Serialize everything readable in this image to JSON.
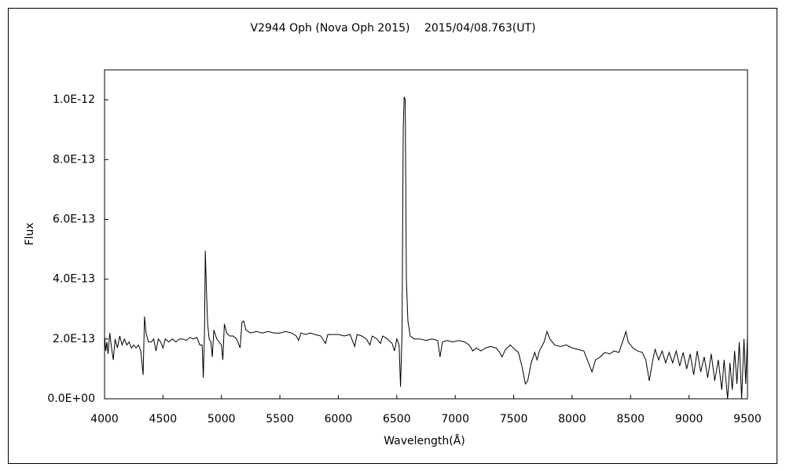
{
  "chart_data": {
    "type": "line",
    "title": "V2944 Oph (Nova Oph 2015)　 2015/04/08.763(UT)",
    "x_label": "Wavelength(Å)",
    "y_label": "Flux",
    "color": "#000000",
    "xlim": [
      4000,
      9500
    ],
    "xticks": [
      4000,
      4500,
      5000,
      5500,
      6000,
      6500,
      7000,
      7500,
      8000,
      8500,
      9000,
      9500
    ],
    "ylim": [
      0,
      1.1e-12
    ],
    "yticks": [
      {
        "value": 0,
        "label": "0.0E+00"
      },
      {
        "value": 2e-13,
        "label": "2.0E-13"
      },
      {
        "value": 4e-13,
        "label": "4.0E-13"
      },
      {
        "value": 6e-13,
        "label": "6.0E-13"
      },
      {
        "value": 8e-13,
        "label": "8.0E-13"
      },
      {
        "value": 1e-12,
        "label": "1.0E-12"
      }
    ],
    "x": [
      4000,
      4010,
      4020,
      4030,
      4045,
      4060,
      4075,
      4090,
      4110,
      4130,
      4150,
      4170,
      4190,
      4210,
      4230,
      4250,
      4270,
      4290,
      4310,
      4330,
      4342,
      4355,
      4375,
      4400,
      4420,
      4440,
      4460,
      4480,
      4500,
      4520,
      4550,
      4580,
      4610,
      4640,
      4670,
      4700,
      4730,
      4760,
      4790,
      4815,
      4835,
      4845,
      4855,
      4862,
      4872,
      4882,
      4895,
      4910,
      4922,
      4935,
      4960,
      5000,
      5012,
      5025,
      5045,
      5070,
      5100,
      5130,
      5160,
      5175,
      5190,
      5210,
      5250,
      5300,
      5350,
      5400,
      5450,
      5500,
      5550,
      5600,
      5640,
      5660,
      5680,
      5720,
      5760,
      5800,
      5850,
      5890,
      5910,
      5950,
      6000,
      6050,
      6100,
      6140,
      6160,
      6200,
      6240,
      6270,
      6290,
      6330,
      6360,
      6380,
      6420,
      6460,
      6480,
      6500,
      6520,
      6532,
      6545,
      6555,
      6563,
      6572,
      6582,
      6595,
      6615,
      6650,
      6700,
      6750,
      6800,
      6850,
      6870,
      6890,
      6930,
      6980,
      7030,
      7080,
      7120,
      7150,
      7180,
      7220,
      7260,
      7300,
      7350,
      7380,
      7400,
      7430,
      7470,
      7510,
      7540,
      7570,
      7600,
      7620,
      7650,
      7680,
      7700,
      7720,
      7760,
      7785,
      7810,
      7850,
      7900,
      7950,
      8000,
      8050,
      8100,
      8140,
      8170,
      8200,
      8240,
      8280,
      8320,
      8360,
      8400,
      8440,
      8460,
      8480,
      8520,
      8560,
      8600,
      8630,
      8660,
      8690,
      8710,
      8740,
      8770,
      8800,
      8830,
      8860,
      8890,
      8920,
      8950,
      8980,
      9010,
      9040,
      9070,
      9100,
      9130,
      9160,
      9190,
      9220,
      9250,
      9280,
      9300,
      9330,
      9350,
      9370,
      9390,
      9410,
      9430,
      9450,
      9470,
      9485,
      9500
    ],
    "values": [
      2.1e-13,
      1.6e-13,
      1.9e-13,
      1.5e-13,
      2.2e-13,
      1.7e-13,
      1.3e-13,
      2e-13,
      1.7e-13,
      2.1e-13,
      1.8e-13,
      2e-13,
      1.8e-13,
      1.9e-13,
      1.7e-13,
      1.8e-13,
      1.7e-13,
      1.8e-13,
      1.6e-13,
      8e-14,
      2.75e-13,
      2.2e-13,
      1.9e-13,
      1.9e-13,
      2e-13,
      1.6e-13,
      2e-13,
      1.9e-13,
      1.7e-13,
      2e-13,
      1.9e-13,
      2e-13,
      1.9e-13,
      2e-13,
      2e-13,
      1.95e-13,
      2.05e-13,
      2e-13,
      2.05e-13,
      1.8e-13,
      1.8e-13,
      7e-14,
      2.2e-13,
      4.95e-13,
      3.6e-13,
      2.5e-13,
      2e-13,
      1.9e-13,
      1.4e-13,
      2.3e-13,
      2e-13,
      1.8e-13,
      1.3e-13,
      2.5e-13,
      2.2e-13,
      2.1e-13,
      2.1e-13,
      2e-13,
      1.7e-13,
      2.55e-13,
      2.6e-13,
      2.3e-13,
      2.2e-13,
      2.25e-13,
      2.2e-13,
      2.25e-13,
      2.2e-13,
      2.2e-13,
      2.25e-13,
      2.2e-13,
      2.1e-13,
      1.95e-13,
      2.2e-13,
      2.15e-13,
      2.2e-13,
      2.15e-13,
      2.1e-13,
      1.85e-13,
      2.15e-13,
      2.15e-13,
      2.15e-13,
      2.1e-13,
      2.15e-13,
      1.75e-13,
      2.15e-13,
      2.1e-13,
      2e-13,
      1.8e-13,
      2.1e-13,
      2e-13,
      1.85e-13,
      2.1e-13,
      2e-13,
      1.85e-13,
      1.6e-13,
      2e-13,
      1.8e-13,
      4e-14,
      2.2e-13,
      9e-13,
      1.01e-12,
      1e-12,
      4e-13,
      2.6e-13,
      2.1e-13,
      2e-13,
      2e-13,
      1.95e-13,
      2e-13,
      1.95e-13,
      1.4e-13,
      1.9e-13,
      1.95e-13,
      1.9e-13,
      1.95e-13,
      1.9e-13,
      1.8e-13,
      1.6e-13,
      1.7e-13,
      1.6e-13,
      1.7e-13,
      1.75e-13,
      1.7e-13,
      1.55e-13,
      1.4e-13,
      1.65e-13,
      1.8e-13,
      1.65e-13,
      1.55e-13,
      1.1e-13,
      5e-14,
      6e-14,
      1.2e-13,
      1.55e-13,
      1.3e-13,
      1.6e-13,
      1.9e-13,
      2.25e-13,
      2e-13,
      1.8e-13,
      1.75e-13,
      1.8e-13,
      1.7e-13,
      1.65e-13,
      1.6e-13,
      1.2e-13,
      9e-14,
      1.3e-13,
      1.4e-13,
      1.55e-13,
      1.5e-13,
      1.6e-13,
      1.55e-13,
      2e-13,
      2.25e-13,
      1.9e-13,
      1.7e-13,
      1.6e-13,
      1.55e-13,
      1.3e-13,
      6e-14,
      1.3e-13,
      1.65e-13,
      1.3e-13,
      1.6e-13,
      1.2e-13,
      1.55e-13,
      1.2e-13,
      1.6e-13,
      1.1e-13,
      1.55e-13,
      1e-13,
      1.5e-13,
      8e-14,
      1.6e-13,
      9e-14,
      1.4e-13,
      7e-14,
      1.5e-13,
      6e-14,
      1.3e-13,
      3e-14,
      1.3e-13,
      0,
      1.2e-13,
      3e-14,
      1.6e-13,
      5e-14,
      1.9e-13,
      0,
      2e-13,
      5e-14,
      2.1e-13
    ]
  }
}
